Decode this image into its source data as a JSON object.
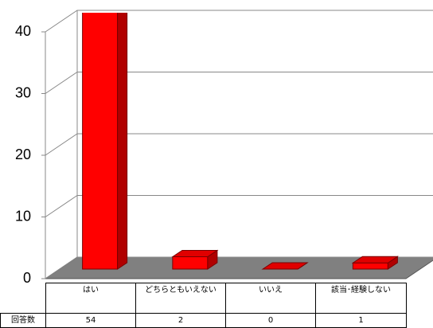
{
  "chart_data": {
    "type": "bar3d",
    "categories": [
      "はい",
      "どちらともいえない",
      "いいえ",
      "該当･経験しない"
    ],
    "values": [
      54,
      2,
      0,
      1
    ],
    "table_row_label": "回答数",
    "color": "#ff0000",
    "ylim": [
      0,
      40
    ],
    "yticks": [
      0,
      10,
      20,
      30,
      40
    ],
    "grid": true
  }
}
